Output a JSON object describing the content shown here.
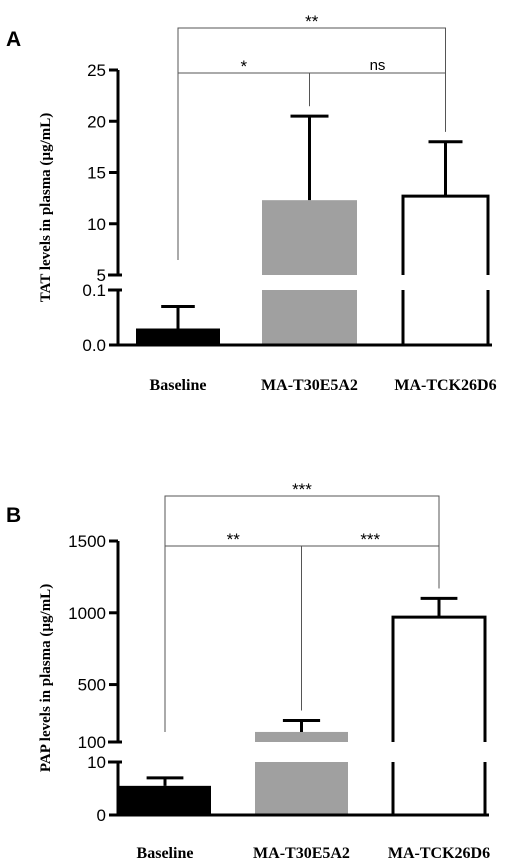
{
  "chart_data": [
    {
      "panel": "A",
      "type": "bar",
      "ylabel": "TAT levels in plasma (µg/mL)",
      "categories": [
        "Baseline",
        "MA-T30E5A2",
        "MA-TCK26D6"
      ],
      "values": [
        0.03,
        12.3,
        12.7
      ],
      "errors": [
        0.04,
        8.2,
        5.3
      ],
      "colors": [
        "#000000",
        "#a0a0a0",
        "#ffffff"
      ],
      "broken_axis": true,
      "lower_ylim": [
        0,
        0.1
      ],
      "lower_ticks": [
        "0.0",
        "0.1"
      ],
      "upper_ylim": [
        5,
        25
      ],
      "upper_ticks": [
        "5",
        "10",
        "15",
        "20",
        "25"
      ],
      "comparisons": [
        {
          "from": "Baseline",
          "to": "MA-TCK26D6",
          "label": "**"
        },
        {
          "from": "Baseline",
          "to": "MA-T30E5A2",
          "label": "*"
        },
        {
          "from": "MA-T30E5A2",
          "to": "MA-TCK26D6",
          "label": "ns"
        }
      ]
    },
    {
      "panel": "B",
      "type": "bar",
      "ylabel": "PAP levels in plasma (µg/mL)",
      "categories": [
        "Baseline",
        "MA-T30E5A2",
        "MA-TCK26D6"
      ],
      "values": [
        5.5,
        170,
        970
      ],
      "errors": [
        1.5,
        80,
        130
      ],
      "colors": [
        "#000000",
        "#a0a0a0",
        "#ffffff"
      ],
      "broken_axis": true,
      "lower_ylim": [
        0,
        10
      ],
      "lower_ticks": [
        "0",
        "10"
      ],
      "upper_ylim": [
        100,
        1500
      ],
      "upper_ticks": [
        "100",
        "500",
        "1000",
        "1500"
      ],
      "comparisons": [
        {
          "from": "Baseline",
          "to": "MA-TCK26D6",
          "label": "***"
        },
        {
          "from": "Baseline",
          "to": "MA-T30E5A2",
          "label": "**"
        },
        {
          "from": "MA-T30E5A2",
          "to": "MA-TCK26D6",
          "label": "***"
        }
      ]
    }
  ]
}
